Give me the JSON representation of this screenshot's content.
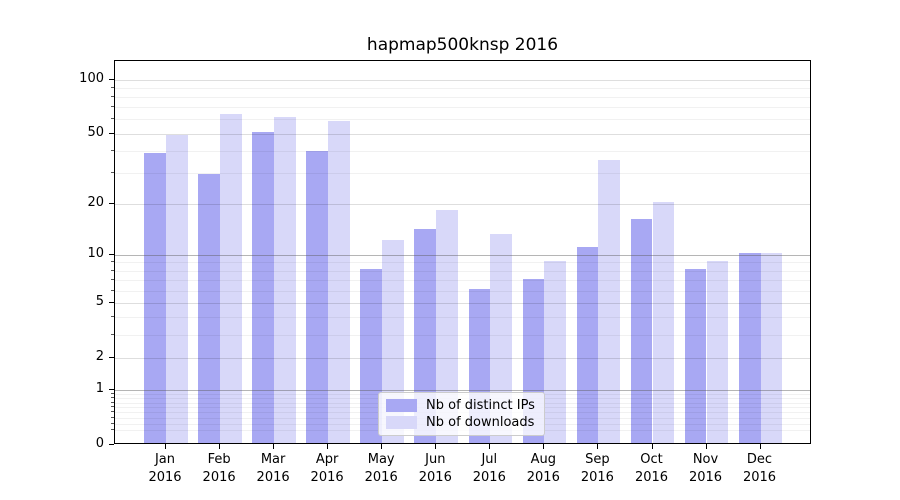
{
  "title": "hapmap500knsp 2016",
  "chart_data": {
    "type": "bar",
    "title": "hapmap500knsp 2016",
    "categories": [
      "Jan 2016",
      "Feb 2016",
      "Mar 2016",
      "Apr 2016",
      "May 2016",
      "Jun 2016",
      "Jul 2016",
      "Aug 2016",
      "Sep 2016",
      "Oct 2016",
      "Nov 2016",
      "Dec 2016"
    ],
    "series": [
      {
        "name": "Nb of distinct IPs",
        "color": "#a8a8f3",
        "values": [
          38,
          29,
          50,
          39,
          8,
          14,
          6,
          7,
          11,
          16,
          8,
          10
        ]
      },
      {
        "name": "Nb of downloads",
        "color": "#d8d8f9",
        "values": [
          48,
          63,
          61,
          58,
          12,
          18,
          13,
          9,
          35,
          20,
          9,
          10
        ]
      }
    ],
    "xlabel": "",
    "ylabel": "",
    "yscale": "log1p",
    "yticks": [
      0,
      1,
      2,
      5,
      10,
      20,
      50,
      100
    ],
    "ylim": [
      0,
      125
    ],
    "grid": "horizontal",
    "legend_position": "inside-bottom-center"
  },
  "colors": {
    "bar_dark": "#a8a8f3",
    "bar_light": "#d8d8f9",
    "grid_decade": "#8c8c8c",
    "grid_minor": "#ececec",
    "axis": "#000000",
    "legend_border": "#cccccc"
  }
}
